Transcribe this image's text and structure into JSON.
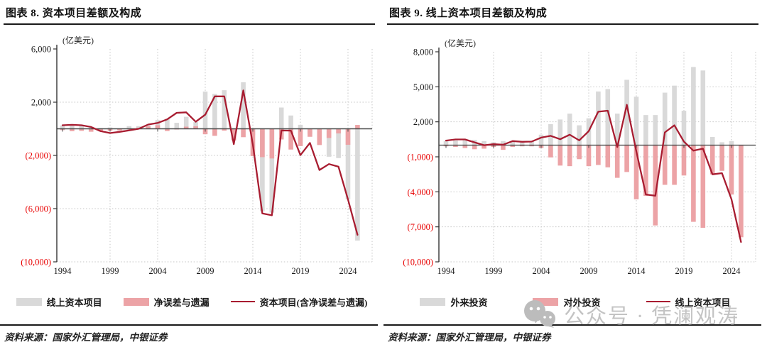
{
  "colors": {
    "bar_gray": "#d9d9d9",
    "bar_pink": "#eca3a6",
    "line_red": "#a81c30",
    "neg_label": "#e80000",
    "pos_label": "#1a1a1a",
    "axis": "#333333",
    "zero_line": "#4a4a4a",
    "grid": "#c5c5c5",
    "watermark": "#c3c3c3"
  },
  "watermark": {
    "icon": "wechat-icon",
    "text": "公众号 · 凭澜观涛"
  },
  "panels": [
    {
      "title": "图表 8. 资本项目差额及构成",
      "source": "资料来源：国家外汇管理局，中银证券",
      "legend": [
        {
          "label": "线上资本项目",
          "swatch": "gray"
        },
        {
          "label": "净误差与遗漏",
          "swatch": "pink"
        },
        {
          "label": "资本项目(含净误差与遗漏)",
          "swatch": "line"
        }
      ]
    },
    {
      "title": "图表 9. 线上资本项目差额及构成",
      "source": "资料来源：国家外汇管理局，中银证券",
      "legend": [
        {
          "label": "外来投资",
          "swatch": "gray"
        },
        {
          "label": "对外投资",
          "swatch": "pink"
        },
        {
          "label": "线上资本项目",
          "swatch": "line"
        }
      ]
    }
  ],
  "chart_data": [
    {
      "type": "bar",
      "subtype": "bar+line combo, values estimated from gridlines",
      "title": "资本项目差额及构成",
      "unit_label": "(亿美元)",
      "xlabel": "",
      "ylabel": "亿美元",
      "ylim": [
        -10000,
        6000
      ],
      "grid": true,
      "legend_position": "bottom",
      "x": [
        1994,
        1995,
        1996,
        1997,
        1998,
        1999,
        2000,
        2001,
        2002,
        2003,
        2004,
        2005,
        2006,
        2007,
        2008,
        2009,
        2010,
        2011,
        2012,
        2013,
        2014,
        2015,
        2016,
        2017,
        2018,
        2019,
        2020,
        2021,
        2022,
        2023,
        2024,
        2025
      ],
      "x_ticks": [
        1994,
        1999,
        2004,
        2009,
        2014,
        2019,
        2024
      ],
      "y_ticks": [
        {
          "label": "6,000",
          "value": 6000
        },
        {
          "label": "2,000",
          "value": 2000
        },
        {
          "label": "(2,000)",
          "value": -2000
        },
        {
          "label": "(6,000)",
          "value": -6000
        },
        {
          "label": "(10,000)",
          "value": -10000
        }
      ],
      "series": [
        {
          "name": "线上资本项目",
          "type": "bar",
          "color_key": "bar_gray",
          "values": [
            250,
            250,
            250,
            100,
            50,
            100,
            -50,
            200,
            200,
            250,
            650,
            750,
            450,
            900,
            500,
            2800,
            2620,
            2900,
            -100,
            3500,
            -500,
            -6200,
            -6300,
            1600,
            1000,
            300,
            -400,
            -800,
            -2100,
            -2200,
            -5300,
            -8400
          ]
        },
        {
          "name": "净误差与遗漏",
          "type": "bar",
          "color_key": "bar_pink",
          "values": [
            -100,
            -180,
            -155,
            -220,
            -190,
            -150,
            -120,
            -50,
            80,
            180,
            270,
            -170,
            -10,
            160,
            190,
            -410,
            -530,
            -140,
            -870,
            -630,
            -2050,
            -2130,
            -2230,
            -800,
            -1560,
            -1300,
            -600,
            -1220,
            -690,
            -350,
            -1200,
            290
          ]
        },
        {
          "name": "资本项目(含净误差与遗漏)",
          "type": "line",
          "color_key": "line_red",
          "values": [
            265,
            300,
            265,
            140,
            -175,
            -320,
            -230,
            -125,
            0,
            320,
            440,
            710,
            1200,
            1240,
            530,
            1060,
            2440,
            2440,
            -1150,
            2885,
            -1170,
            -6360,
            -6500,
            -130,
            -140,
            -1980,
            -1060,
            -3100,
            -2650,
            -2850,
            -5310,
            -7970
          ]
        }
      ],
      "layout": {
        "plot_top": 34,
        "plot_bottom": 334,
        "axis_x": 80,
        "plot_right": 524,
        "x0": 88,
        "dx": 13.4
      }
    },
    {
      "type": "bar",
      "subtype": "bar+line combo, values estimated from gridlines",
      "title": "线上资本项目差额及构成",
      "unit_label": "(亿美元)",
      "xlabel": "",
      "ylabel": "亿美元",
      "ylim": [
        -10000,
        8000
      ],
      "grid": true,
      "legend_position": "bottom",
      "x": [
        1994,
        1995,
        1996,
        1997,
        1998,
        1999,
        2000,
        2001,
        2002,
        2003,
        2004,
        2005,
        2006,
        2007,
        2008,
        2009,
        2010,
        2011,
        2012,
        2013,
        2014,
        2015,
        2016,
        2017,
        2018,
        2019,
        2020,
        2021,
        2022,
        2023,
        2024,
        2025
      ],
      "x_ticks": [
        1994,
        1999,
        2004,
        2009,
        2014,
        2019,
        2024
      ],
      "y_ticks": [
        {
          "label": "8,000",
          "value": 8000
        },
        {
          "label": "5,000",
          "value": 5000
        },
        {
          "label": "2,000",
          "value": 2000
        },
        {
          "label": "(1,000)",
          "value": -1000
        },
        {
          "label": "(4,000)",
          "value": -4000
        },
        {
          "label": "(7,000)",
          "value": -7000
        },
        {
          "label": "(10,000)",
          "value": -10000
        }
      ],
      "series": [
        {
          "name": "外来投资",
          "type": "bar",
          "color_key": "bar_gray",
          "values": [
            350,
            400,
            500,
            450,
            350,
            250,
            350,
            350,
            300,
            350,
            900,
            1800,
            2200,
            2700,
            1700,
            2300,
            4600,
            4800,
            2700,
            5600,
            4150,
            2580,
            2580,
            4500,
            5100,
            2950,
            6700,
            6400,
            700,
            250,
            350,
            -300
          ]
        },
        {
          "name": "对外投资",
          "type": "bar",
          "color_key": "bar_pink",
          "values": [
            -100,
            -150,
            -250,
            -350,
            -300,
            -150,
            -400,
            -150,
            -100,
            -100,
            -250,
            -1050,
            -1750,
            -1800,
            -1200,
            -1800,
            -1700,
            -1900,
            -2800,
            -2300,
            -4640,
            -4340,
            -6880,
            -3400,
            -3400,
            -2600,
            -6570,
            -7080,
            -2500,
            -2200,
            -4230,
            -7890
          ]
        },
        {
          "name": "线上资本项目",
          "type": "line",
          "color_key": "line_red",
          "values": [
            390,
            490,
            490,
            240,
            0,
            80,
            40,
            350,
            290,
            310,
            650,
            800,
            510,
            900,
            410,
            1200,
            2870,
            2950,
            -160,
            3460,
            -530,
            -4230,
            -4330,
            1100,
            1700,
            300,
            -470,
            -300,
            -2500,
            -2400,
            -4640,
            -8300
          ]
        }
      ],
      "layout": {
        "plot_top": 38,
        "plot_bottom": 334,
        "axis_x": 78,
        "plot_right": 524,
        "x0": 88,
        "dx": 13.4
      }
    }
  ]
}
